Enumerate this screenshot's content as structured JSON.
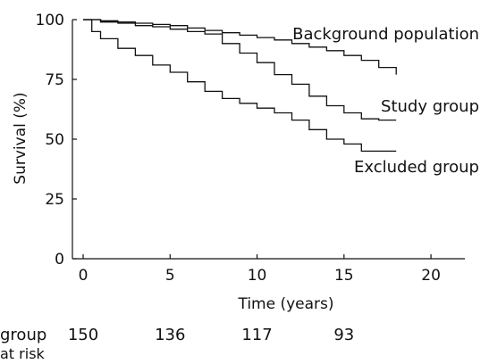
{
  "chart_data": {
    "type": "line",
    "step": true,
    "xlabel": "Time (years)",
    "ylabel": "Survival (%)",
    "xlim": [
      0,
      22
    ],
    "ylim": [
      0,
      100
    ],
    "x_ticks": [
      0,
      5,
      10,
      15,
      20
    ],
    "y_ticks": [
      0,
      25,
      50,
      75,
      100
    ],
    "grid": false,
    "series": [
      {
        "name": "Background population",
        "points": [
          [
            0,
            100
          ],
          [
            1,
            99.5
          ],
          [
            2,
            99
          ],
          [
            3,
            98.5
          ],
          [
            4,
            98
          ],
          [
            5,
            97.5
          ],
          [
            6,
            96.5
          ],
          [
            7,
            95.5
          ],
          [
            8,
            94.5
          ],
          [
            9,
            93.5
          ],
          [
            10,
            92.5
          ],
          [
            11,
            91.5
          ],
          [
            12,
            90
          ],
          [
            13,
            88.5
          ],
          [
            14,
            87
          ],
          [
            15,
            85
          ],
          [
            16,
            83
          ],
          [
            17,
            80
          ],
          [
            18,
            77
          ]
        ]
      },
      {
        "name": "Study group",
        "points": [
          [
            0,
            100
          ],
          [
            1,
            99
          ],
          [
            2,
            98.5
          ],
          [
            3,
            97.5
          ],
          [
            4,
            97
          ],
          [
            5,
            96
          ],
          [
            6,
            95
          ],
          [
            7,
            94
          ],
          [
            8,
            90
          ],
          [
            9,
            86
          ],
          [
            10,
            82
          ],
          [
            11,
            77
          ],
          [
            12,
            73
          ],
          [
            13,
            68
          ],
          [
            14,
            64
          ],
          [
            15,
            61
          ],
          [
            16,
            58.5
          ],
          [
            17,
            58
          ],
          [
            18,
            58
          ]
        ]
      },
      {
        "name": "Excluded group",
        "points": [
          [
            0,
            100
          ],
          [
            0.5,
            95
          ],
          [
            1,
            92
          ],
          [
            2,
            88
          ],
          [
            3,
            85
          ],
          [
            4,
            81
          ],
          [
            5,
            78
          ],
          [
            6,
            74
          ],
          [
            7,
            70
          ],
          [
            8,
            67
          ],
          [
            9,
            65
          ],
          [
            10,
            63
          ],
          [
            11,
            61
          ],
          [
            12,
            58
          ],
          [
            13,
            54
          ],
          [
            14,
            50
          ],
          [
            15,
            48
          ],
          [
            16,
            45
          ],
          [
            17,
            45
          ],
          [
            18,
            45
          ]
        ]
      }
    ]
  },
  "at_risk": {
    "label_line1": "group",
    "label_line2": "at risk",
    "values": [
      {
        "x": 0,
        "value": "150"
      },
      {
        "x": 5,
        "value": "136"
      },
      {
        "x": 10,
        "value": "117"
      },
      {
        "x": 15,
        "value": "93"
      }
    ]
  }
}
